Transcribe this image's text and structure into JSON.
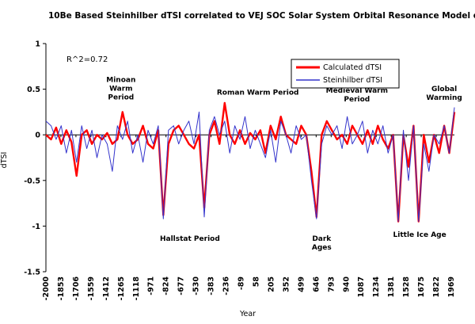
{
  "chart_data": {
    "type": "line",
    "title": "10Be Based Steinhilber dTSI correlated to VEJ SOC Solar System Orbital Resonance Model dTSI",
    "xlabel": "Year",
    "ylabel": "dTSI",
    "xlim": [
      -2000,
      2000
    ],
    "ylim": [
      -1.5,
      1
    ],
    "y_ticks": [
      "1",
      "0.5",
      "0",
      "-0.5",
      "-1",
      "-1.5"
    ],
    "y_tick_values": [
      1,
      0.5,
      0,
      -0.5,
      -1,
      -1.5
    ],
    "x_ticks": [
      "-2000",
      "-1853",
      "-1706",
      "-1559",
      "-1412",
      "-1265",
      "-1118",
      "-971",
      "-824",
      "-677",
      "-530",
      "-383",
      "-236",
      "-89",
      "58",
      "205",
      "352",
      "499",
      "646",
      "793",
      "940",
      "1087",
      "1234",
      "1381",
      "1528",
      "1675",
      "1822",
      "1969"
    ],
    "x_tick_values": [
      -2000,
      -1853,
      -1706,
      -1559,
      -1412,
      -1265,
      -1118,
      -971,
      -824,
      -677,
      -530,
      -383,
      -236,
      -89,
      58,
      205,
      352,
      499,
      646,
      793,
      940,
      1087,
      1234,
      1381,
      1528,
      1675,
      1822,
      1969
    ],
    "r_squared_label": "R^2=0.72",
    "legend_position": "top-right",
    "grid": false,
    "series": [
      {
        "name": "Calculated dTSI",
        "color": "#ff0000",
        "x": [
          -2000,
          -1950,
          -1900,
          -1850,
          -1800,
          -1750,
          -1700,
          -1650,
          -1600,
          -1550,
          -1500,
          -1450,
          -1400,
          -1350,
          -1300,
          -1250,
          -1200,
          -1150,
          -1100,
          -1050,
          -1000,
          -950,
          -900,
          -850,
          -800,
          -750,
          -700,
          -650,
          -600,
          -550,
          -500,
          -450,
          -400,
          -350,
          -300,
          -250,
          -200,
          -150,
          -100,
          -50,
          0,
          50,
          100,
          150,
          200,
          250,
          300,
          350,
          400,
          450,
          500,
          550,
          600,
          650,
          700,
          750,
          800,
          850,
          900,
          950,
          1000,
          1050,
          1100,
          1150,
          1200,
          1250,
          1300,
          1350,
          1400,
          1450,
          1500,
          1550,
          1600,
          1650,
          1700,
          1750,
          1800,
          1850,
          1900,
          1950,
          2000
        ],
        "y": [
          0.0,
          -0.05,
          0.08,
          -0.1,
          0.05,
          -0.08,
          -0.45,
          0.0,
          0.05,
          -0.1,
          0.0,
          -0.05,
          0.02,
          -0.1,
          -0.05,
          0.25,
          0.0,
          -0.1,
          -0.05,
          0.1,
          -0.1,
          -0.15,
          0.05,
          -0.88,
          -0.1,
          0.05,
          0.1,
          0.0,
          -0.1,
          -0.15,
          0.0,
          -0.8,
          0.0,
          0.15,
          -0.1,
          0.35,
          0.0,
          -0.1,
          0.05,
          -0.1,
          0.02,
          -0.05,
          0.05,
          -0.2,
          0.1,
          -0.05,
          0.2,
          0.0,
          -0.05,
          -0.1,
          0.1,
          0.0,
          -0.4,
          -0.9,
          0.0,
          0.15,
          0.05,
          -0.05,
          0.0,
          -0.1,
          0.1,
          0.0,
          -0.1,
          0.05,
          -0.1,
          0.1,
          -0.05,
          -0.15,
          0.0,
          -0.95,
          0.0,
          -0.35,
          0.1,
          -0.95,
          0.0,
          -0.3,
          0.0,
          -0.2,
          0.1,
          -0.2,
          0.25
        ]
      },
      {
        "name": "Steinhilber dTSI",
        "color": "#3333cc",
        "x": [
          -2000,
          -1950,
          -1900,
          -1850,
          -1800,
          -1750,
          -1700,
          -1650,
          -1600,
          -1550,
          -1500,
          -1450,
          -1400,
          -1350,
          -1300,
          -1250,
          -1200,
          -1150,
          -1100,
          -1050,
          -1000,
          -950,
          -900,
          -850,
          -800,
          -750,
          -700,
          -650,
          -600,
          -550,
          -500,
          -450,
          -400,
          -350,
          -300,
          -250,
          -200,
          -150,
          -100,
          -50,
          0,
          50,
          100,
          150,
          200,
          250,
          300,
          350,
          400,
          450,
          500,
          550,
          600,
          650,
          700,
          750,
          800,
          850,
          900,
          950,
          1000,
          1050,
          1100,
          1150,
          1200,
          1250,
          1300,
          1350,
          1400,
          1450,
          1500,
          1550,
          1600,
          1650,
          1700,
          1750,
          1800,
          1850,
          1900,
          1950,
          2000
        ],
        "y": [
          0.15,
          0.1,
          -0.05,
          0.1,
          -0.2,
          0.05,
          -0.3,
          0.1,
          -0.15,
          0.05,
          -0.25,
          0.0,
          -0.1,
          -0.4,
          0.1,
          -0.05,
          0.15,
          -0.2,
          0.0,
          -0.3,
          0.05,
          -0.1,
          0.1,
          -0.92,
          0.05,
          0.1,
          -0.1,
          0.05,
          0.15,
          -0.1,
          0.25,
          -0.9,
          0.05,
          0.2,
          0.0,
          0.15,
          -0.2,
          0.1,
          -0.05,
          0.2,
          -0.15,
          0.05,
          -0.1,
          -0.25,
          0.05,
          -0.3,
          0.15,
          0.0,
          -0.2,
          0.1,
          -0.05,
          0.0,
          -0.5,
          -0.92,
          -0.1,
          0.1,
          0.0,
          0.1,
          -0.15,
          0.2,
          -0.1,
          0.0,
          0.15,
          -0.2,
          0.05,
          -0.1,
          0.1,
          -0.2,
          0.0,
          -0.95,
          0.05,
          -0.5,
          0.1,
          -0.95,
          -0.1,
          -0.4,
          0.0,
          -0.1,
          0.1,
          -0.2,
          0.3
        ]
      }
    ],
    "annotations": [
      {
        "lines": [
          "Minoan",
          "Warm",
          "Period"
        ],
        "x": -1265,
        "y": 0.58
      },
      {
        "lines": [
          "Hallstat Period"
        ],
        "x": -590,
        "y": -1.16
      },
      {
        "lines": [
          "Roman Warm Period"
        ],
        "x": 75,
        "y": 0.44
      },
      {
        "lines": [
          "Dark",
          "Ages"
        ],
        "x": 700,
        "y": -1.16
      },
      {
        "lines": [
          "Medieval Warm",
          "Period"
        ],
        "x": 1045,
        "y": 0.46
      },
      {
        "lines": [
          "Little Ice Age"
        ],
        "x": 1660,
        "y": -1.12
      },
      {
        "lines": [
          "Global",
          "Warming"
        ],
        "x": 1900,
        "y": 0.48
      }
    ]
  }
}
